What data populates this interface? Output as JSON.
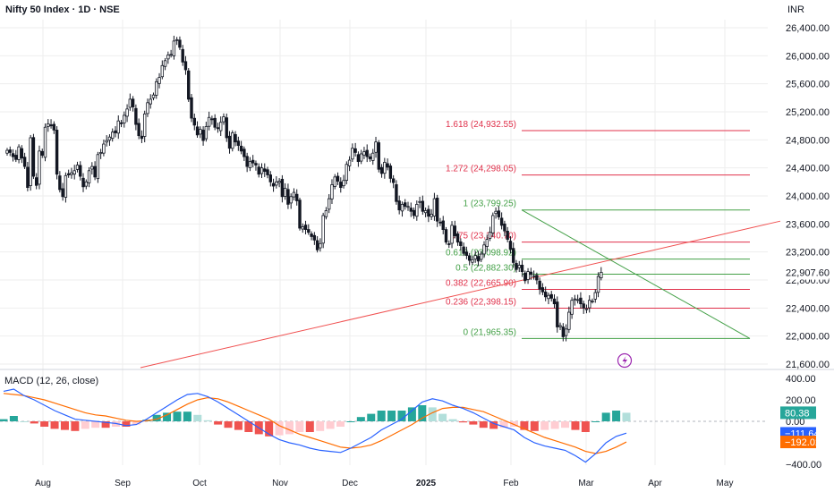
{
  "header": {
    "title": "Nifty 50 Index · 1D · NSE",
    "currency": "INR"
  },
  "colors": {
    "up": "#26a69a",
    "down": "#ef5350",
    "fib_red": "#e0314b",
    "fib_green": "#43a047",
    "trend": "#f05050",
    "macd": "#2962ff",
    "signal": "#ff6d00",
    "grid": "#eeeeee",
    "text": "#131722",
    "gray": "#787b86"
  },
  "chart_data": [
    {
      "type": "candlestick",
      "title": "Nifty 50 Index · 1D · NSE",
      "ylabel": "INR",
      "yticks": [
        21600,
        22000,
        22400,
        22800,
        23200,
        23600,
        24000,
        24400,
        24800,
        25200,
        25600,
        26000,
        26400
      ],
      "ytick_labels": [
        "21,600.00",
        "22,000.00",
        "22,400.00",
        "22,800.00",
        "23,200.00",
        "23,600.00",
        "24,000.00",
        "24,400.00",
        "24,800.00",
        "25,200.00",
        "25,600.00",
        "26,000.00",
        "26,400.00"
      ],
      "ylim": [
        21600,
        26400
      ],
      "xticks": [
        "Aug",
        "Sep",
        "Oct",
        "Nov",
        "Dec",
        "2025",
        "Feb",
        "Mar",
        "Apr",
        "May"
      ],
      "last_price": "22,907.60",
      "closes": [
        24650,
        24620,
        24560,
        24520,
        24700,
        24540,
        24420,
        24120,
        24830,
        24280,
        24150,
        24640,
        24580,
        24980,
        25030,
        25000,
        24940,
        24310,
        24090,
        23990,
        24290,
        24300,
        24330,
        24360,
        24440,
        24280,
        24130,
        24200,
        24360,
        24420,
        24270,
        24590,
        24620,
        24740,
        24790,
        24840,
        24910,
        24900,
        25070,
        25030,
        25150,
        25240,
        25380,
        25270,
        25020,
        24860,
        24820,
        25170,
        25330,
        25380,
        25440,
        25630,
        25690,
        25860,
        25930,
        26010,
        26020,
        26210,
        26230,
        26120,
        25910,
        25800,
        25380,
        25110,
        25010,
        24870,
        24950,
        24790,
        24990,
        25120,
        25090,
        24980,
        24960,
        25050,
        25130,
        24830,
        24680,
        24900,
        24770,
        24720,
        24640,
        24560,
        24420,
        24490,
        24470,
        24440,
        24310,
        24400,
        24350,
        24300,
        24200,
        24140,
        24200,
        24210,
        23990,
        24110,
        23880,
        23990,
        24050,
        23930,
        23540,
        23560,
        23520,
        23480,
        23420,
        23370,
        23230,
        23320,
        23720,
        23790,
        23960,
        24160,
        24270,
        24210,
        24120,
        24220,
        24450,
        24510,
        24680,
        24620,
        24490,
        24600,
        24630,
        24560,
        24530,
        24610,
        24770,
        24380,
        24320,
        24480,
        24410,
        24250,
        24190,
        23920,
        23800,
        23880,
        23850,
        23850,
        23780,
        23720,
        23880,
        23920,
        23780,
        23790,
        23710,
        23740,
        23960,
        23640,
        23620,
        23520,
        23340,
        23310,
        23580,
        23430,
        23340,
        23290,
        23180,
        23150,
        23080,
        23090,
        23150,
        23070,
        23170,
        23300,
        23380,
        23480,
        23720,
        23780,
        23700,
        23580,
        23500,
        23380,
        23240,
        23050,
        22950,
        23010,
        22920,
        22790,
        22920,
        22880,
        22860,
        22800,
        22670,
        22630,
        22560,
        22580,
        22540,
        22460,
        22130,
        22150,
        21990,
        22100,
        22340,
        22510,
        22530,
        22520,
        22460,
        22400,
        22390,
        22510,
        22500,
        22620,
        22850,
        22910
      ],
      "fibonacci": [
        {
          "label": "1.618 (24,932.55)",
          "value": 24932.55,
          "color": "red"
        },
        {
          "label": "1.272 (24,298.05)",
          "value": 24298.05,
          "color": "red"
        },
        {
          "label": "1 (23,799.25)",
          "value": 23799.25,
          "color": "green"
        },
        {
          "label": "0.75 (23,340.70)",
          "value": 23340.7,
          "color": "red"
        },
        {
          "label": "0.618 (23,098.92)",
          "value": 23098.92,
          "color": "green"
        },
        {
          "label": "0.5 (22,882.30)",
          "value": 22882.3,
          "color": "green"
        },
        {
          "label": "0.382 (22,665.90)",
          "value": 22665.9,
          "color": "red"
        },
        {
          "label": "0.236 (22,398.15)",
          "value": 22398.15,
          "color": "red"
        },
        {
          "label": "0 (21,965.35)",
          "value": 21965.35,
          "color": "green"
        }
      ]
    },
    {
      "type": "macd",
      "title": "MACD (12, 26, close)",
      "yticks": [
        400,
        200,
        0,
        -400
      ],
      "ytick_labels": [
        "400.00",
        "200.00",
        "0.00",
        "−400.00"
      ],
      "ylim": [
        -420,
        420
      ],
      "labels": {
        "histogram": "80.38",
        "macd": "−111.64",
        "signal": "−192.02"
      },
      "macd": [
        280,
        300,
        240,
        200,
        150,
        100,
        60,
        20,
        10,
        0,
        -10,
        -20,
        -40,
        -30,
        20,
        80,
        140,
        200,
        250,
        260,
        230,
        180,
        120,
        60,
        0,
        -60,
        -120,
        -170,
        -200,
        -220,
        -250,
        -270,
        -280,
        -290,
        -250,
        -200,
        -150,
        -80,
        -30,
        20,
        100,
        180,
        210,
        190,
        150,
        120,
        80,
        30,
        -20,
        -50,
        -80,
        -150,
        -200,
        -230,
        -250,
        -270,
        -320,
        -380,
        -300,
        -200,
        -140,
        -110
      ],
      "signal": [
        260,
        250,
        240,
        220,
        200,
        170,
        140,
        110,
        80,
        60,
        50,
        30,
        10,
        0,
        5,
        20,
        60,
        110,
        160,
        200,
        220,
        210,
        180,
        140,
        100,
        60,
        20,
        -40,
        -80,
        -120,
        -150,
        -180,
        -210,
        -240,
        -250,
        -240,
        -220,
        -180,
        -130,
        -80,
        -30,
        30,
        80,
        120,
        130,
        130,
        110,
        90,
        50,
        10,
        -30,
        -70,
        -110,
        -150,
        -180,
        -210,
        -240,
        -280,
        -300,
        -280,
        -240,
        -192
      ],
      "histogram": [
        20,
        50,
        0,
        -20,
        -50,
        -70,
        -80,
        -90,
        -70,
        -60,
        -60,
        -50,
        -50,
        -30,
        15,
        60,
        80,
        90,
        90,
        60,
        10,
        -30,
        -60,
        -80,
        -100,
        -120,
        -140,
        -130,
        -120,
        -100,
        -100,
        -90,
        -70,
        -50,
        0,
        40,
        70,
        100,
        100,
        100,
        130,
        150,
        130,
        70,
        20,
        -10,
        -30,
        -60,
        -70,
        -60,
        -50,
        -80,
        -90,
        -80,
        -70,
        -60,
        -80,
        -100,
        0,
        80,
        100,
        80
      ]
    }
  ]
}
